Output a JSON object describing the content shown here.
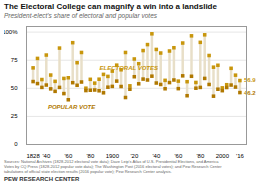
{
  "chart_data": {
    "type": "dumbbell",
    "title": "The Electoral College can magnify a win into a landslide",
    "subtitle": "President-elect's share of electoral and popular votes",
    "source": "Sources: National Archives (1828-2012 electoral vote data); Dave Leip's Atlas of U.S. Presidential Elections, and America\nVotes by CQ Press (1828-2012 popular vote data); The Washington Post (2016 electoral votes); and Pew Research Center\ntabulations of official state election results (2016 popular vote); Pew Research Center analysis.",
    "footer": "PEW RESEARCH CENTER",
    "x": [
      1828,
      1832,
      1836,
      1840,
      1844,
      1848,
      1852,
      1856,
      1860,
      1864,
      1868,
      1872,
      1876,
      1880,
      1884,
      1888,
      1892,
      1896,
      1900,
      1904,
      1908,
      1912,
      1916,
      1920,
      1924,
      1928,
      1932,
      1936,
      1940,
      1944,
      1948,
      1952,
      1956,
      1960,
      1964,
      1968,
      1972,
      1976,
      1980,
      1984,
      1988,
      1992,
      1996,
      2000,
      2004,
      2008,
      2012,
      2016
    ],
    "series": [
      {
        "name": "ELECTORAL VOTES",
        "color": "#c8960c",
        "marker": "square",
        "values": [
          68.2,
          76.6,
          57.8,
          79.6,
          61.8,
          56.2,
          85.8,
          58.8,
          59.4,
          90.6,
          72.8,
          81.9,
          50.1,
          58.0,
          54.6,
          58.1,
          62.4,
          60.6,
          65.3,
          70.6,
          66.5,
          81.9,
          52.2,
          76.1,
          71.9,
          83.6,
          88.9,
          98.5,
          84.6,
          81.4,
          57.1,
          83.2,
          86.1,
          56.4,
          90.3,
          55.9,
          96.7,
          55.2,
          90.9,
          97.6,
          79.2,
          68.8,
          70.5,
          50.4,
          53.2,
          67.8,
          61.7,
          56.9
        ]
      },
      {
        "name": "POPULAR VOTE",
        "color": "#b07800",
        "marker": "square",
        "values": [
          56.0,
          54.2,
          50.8,
          52.9,
          49.5,
          47.3,
          50.8,
          45.3,
          39.8,
          55.0,
          52.7,
          55.6,
          48.0,
          48.3,
          48.5,
          47.8,
          46.0,
          51.0,
          51.7,
          56.4,
          51.6,
          41.8,
          49.2,
          60.3,
          54.0,
          58.2,
          57.4,
          60.8,
          54.7,
          53.4,
          49.6,
          55.1,
          57.4,
          49.7,
          61.1,
          43.4,
          60.7,
          50.1,
          50.8,
          58.8,
          53.4,
          43.0,
          49.2,
          47.9,
          50.7,
          52.9,
          51.1,
          46.2
        ]
      }
    ],
    "color": "#e8dfc8",
    "annotations": [
      {
        "text": "56.9",
        "x": 2016,
        "y": 56.9,
        "color": "#c8960c"
      },
      {
        "text": "46.2",
        "x": 2016,
        "y": 46.2,
        "color": "#b07800"
      },
      {
        "text": "ELECTORAL VOTES",
        "x": 1915,
        "y": 68,
        "color": "#c8960c"
      },
      {
        "text": "POPULAR VOTE",
        "x": 1863,
        "y": 33,
        "color": "#b07800"
      }
    ],
    "xlim": [
      1822,
      2022
    ],
    "xticks": [
      1828,
      {
        "value": 1840,
        "label": "'40"
      },
      {
        "value": 1860,
        "label": "'60"
      },
      {
        "value": 1880,
        "label": "'80"
      },
      1900,
      {
        "value": 1920,
        "label": "'20"
      },
      {
        "value": 1940,
        "label": "'40"
      },
      {
        "value": 1960,
        "label": "'60"
      },
      {
        "value": 1980,
        "label": "'80"
      },
      2000,
      {
        "value": 2016,
        "label": "'16"
      }
    ],
    "ylim": [
      0,
      105
    ],
    "yticks": [
      0,
      25,
      50,
      75,
      {
        "value": 100,
        "label": "100%"
      }
    ],
    "grid": "y"
  }
}
